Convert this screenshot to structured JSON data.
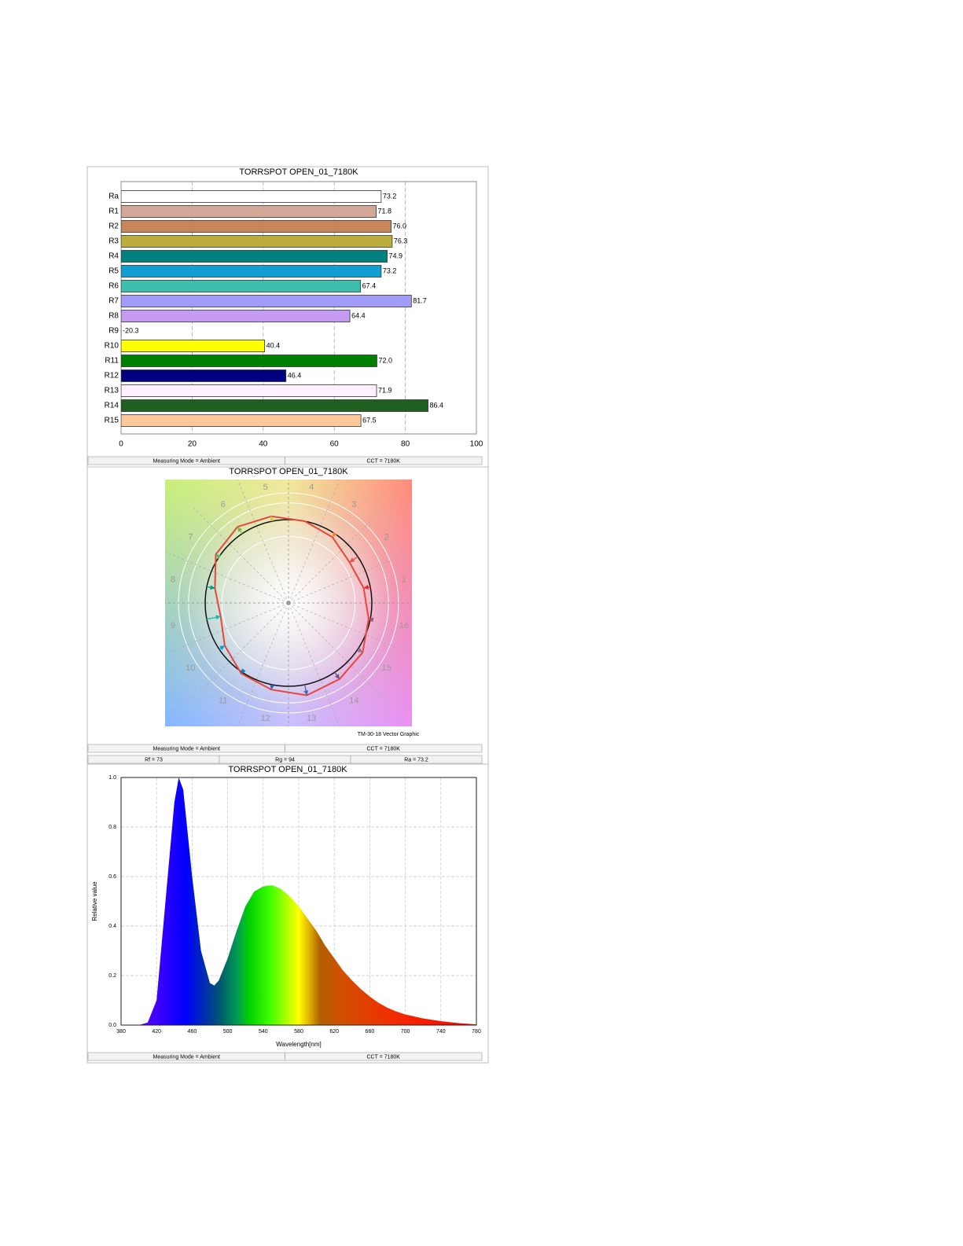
{
  "chart_data": [
    {
      "type": "hbar",
      "title": "TORRSPOT OPEN_01_7180K",
      "categories": [
        "Ra",
        "R1",
        "R2",
        "R3",
        "R4",
        "R5",
        "R6",
        "R7",
        "R8",
        "R9",
        "R10",
        "R11",
        "R12",
        "R13",
        "R14",
        "R15"
      ],
      "values": [
        73.2,
        71.8,
        76.0,
        76.3,
        74.9,
        73.2,
        67.4,
        81.7,
        64.4,
        -20.3,
        40.4,
        72.0,
        46.4,
        71.9,
        86.4,
        67.5
      ],
      "value_labels": [
        "73.2",
        "71.8",
        "76.0",
        "76.3",
        "74.9",
        "73.2",
        "67.4",
        "81.7",
        "64.4",
        "-20.3",
        "40.4",
        "72.0",
        "46.4",
        "71.9",
        "86.4",
        "67.5"
      ],
      "colors": [
        "#ffffff",
        "#d4a898",
        "#c8855a",
        "#bcae3c",
        "#00807f",
        "#129ed0",
        "#3dbfb0",
        "#a09cf8",
        "#c49af2",
        "#e03030",
        "#ffff00",
        "#008000",
        "#000080",
        "#fff0ff",
        "#1f5f1f",
        "#ffc89a"
      ],
      "xlim": [
        0,
        100
      ],
      "xticks": [
        0,
        20,
        40,
        60,
        80,
        100
      ],
      "grid": true,
      "status": [
        [
          "Measuring Mode = Ambient",
          "CCT = 7180K"
        ]
      ]
    },
    {
      "type": "vector",
      "title": "TORRSPOT OPEN_01_7180K",
      "categories": [
        "1",
        "2",
        "3",
        "4",
        "5",
        "6",
        "7",
        "8",
        "9",
        "10",
        "11",
        "12",
        "13",
        "14",
        "15",
        "16"
      ],
      "values": [
        0.92,
        0.88,
        0.95,
        1.0,
        1.06,
        1.1,
        1.05,
        0.9,
        0.83,
        0.92,
        1.02,
        1.06,
        1.13,
        1.1,
        1.07,
        0.98
      ],
      "colors": [
        "#e62828",
        "#e74b4b",
        "#fb812e",
        "#ffb529",
        "#cbca46",
        "#7eb94c",
        "#41c06d",
        "#009c7c",
        "#16bcb0",
        "#00a4bf",
        "#0085c3",
        "#3b62aa",
        "#4568ae",
        "#6a4e85",
        "#9d69a1",
        "#a74f81"
      ],
      "caption": "TM-30-18 Vector Graphic",
      "status": [
        [
          "Measuring Mode = Ambient",
          "CCT = 7180K"
        ],
        [
          "Rf = 73",
          "Rg = 94",
          "Ra = 73.2"
        ]
      ]
    },
    {
      "type": "area",
      "title": "TORRSPOT OPEN_01_7180K",
      "x": [
        380,
        400,
        410,
        420,
        430,
        440,
        445,
        450,
        460,
        470,
        480,
        485,
        490,
        500,
        510,
        520,
        530,
        540,
        550,
        560,
        570,
        580,
        590,
        600,
        610,
        620,
        630,
        640,
        650,
        660,
        670,
        680,
        690,
        700,
        720,
        740,
        760,
        780
      ],
      "values": [
        0,
        0,
        0.01,
        0.1,
        0.5,
        0.9,
        1.0,
        0.95,
        0.6,
        0.3,
        0.17,
        0.16,
        0.18,
        0.27,
        0.38,
        0.48,
        0.54,
        0.56,
        0.565,
        0.55,
        0.52,
        0.48,
        0.43,
        0.38,
        0.32,
        0.27,
        0.22,
        0.18,
        0.145,
        0.115,
        0.09,
        0.07,
        0.055,
        0.043,
        0.027,
        0.016,
        0.008,
        0.003
      ],
      "xlim": [
        380,
        780
      ],
      "xticks": [
        380,
        420,
        460,
        500,
        540,
        580,
        620,
        660,
        700,
        740,
        780
      ],
      "ylim": [
        0,
        1
      ],
      "yticks": [
        {
          "value": 0,
          "label": "0.0"
        },
        0.2,
        0.4,
        0.6,
        0.8,
        {
          "value": 1,
          "label": "1.0"
        }
      ],
      "xlabel": "Wavelength[nm]",
      "ylabel": "Relative value",
      "grid": true,
      "status": [
        [
          "Measuring Mode = Ambient",
          "CCT = 7180K"
        ]
      ]
    }
  ]
}
